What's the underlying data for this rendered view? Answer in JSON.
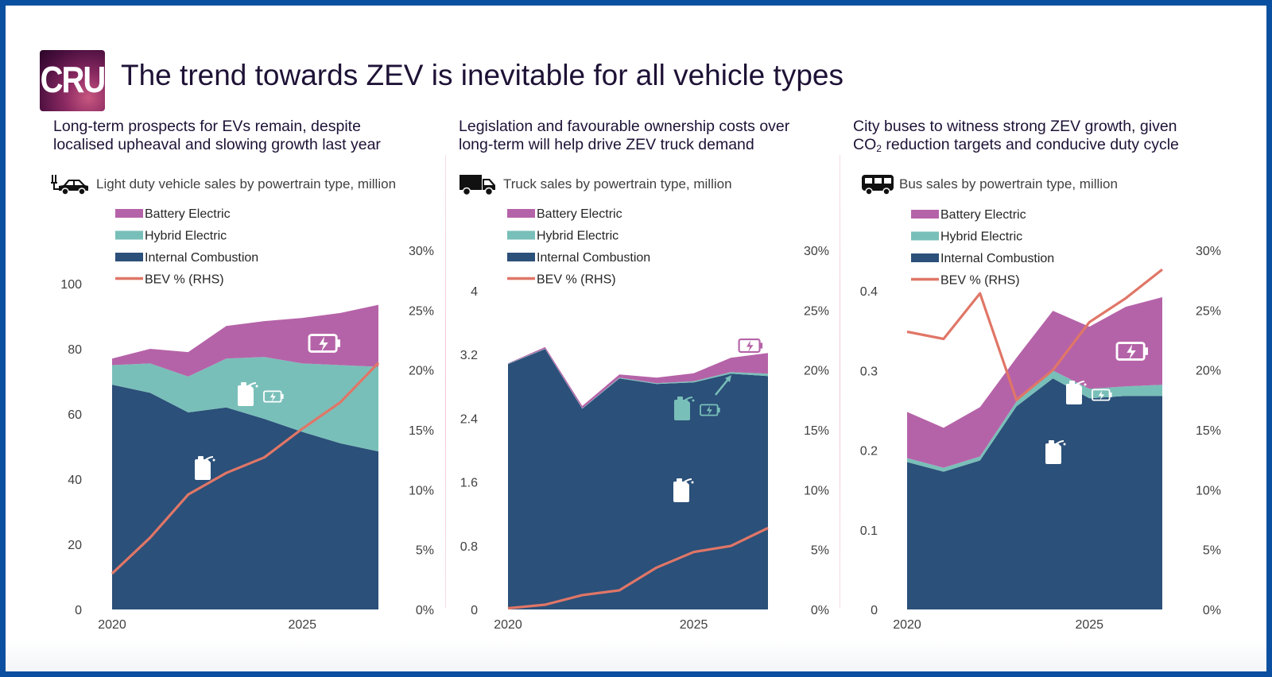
{
  "header": {
    "logo_text": "CRU",
    "title": "The trend towards ZEV is inevitable for all vehicle types"
  },
  "colors": {
    "battery_electric": "#b563a8",
    "hybrid_electric": "#79bfb9",
    "internal_combustion": "#2b5079",
    "bev_share_line": "#e07667",
    "border": "#0b4fa0"
  },
  "panels": [
    {
      "subtitle_line1": "Long-term prospects for EVs remain, despite",
      "subtitle_line2": "localised upheaval and slowing growth last year",
      "chart_label": "Light duty vehicle sales by powertrain type, million",
      "icon": "car-icon"
    },
    {
      "subtitle_line1": "Legislation and favourable ownership costs over",
      "subtitle_line2": "long-term will help drive ZEV truck demand",
      "chart_label": "Truck sales by powertrain type, million",
      "icon": "truck-icon"
    },
    {
      "subtitle_line1": "City buses to witness strong ZEV growth, given",
      "subtitle_line2_pre": "CO",
      "subtitle_line2_sub": "2",
      "subtitle_line2_post": " reduction targets and conducive duty cycle",
      "chart_label": "Bus sales by powertrain type, million",
      "icon": "bus-icon"
    }
  ],
  "legend": [
    "Battery Electric",
    "Hybrid Electric",
    "Internal Combustion",
    "BEV % (RHS)"
  ],
  "chart_data": [
    {
      "type": "area",
      "title": "Light duty vehicle sales by powertrain type, million",
      "x": [
        2020,
        2021,
        2022,
        2023,
        2024,
        2025,
        2026,
        2027
      ],
      "x_tick_labels": [
        "2020",
        "2025"
      ],
      "stacked": true,
      "series": [
        {
          "name": "Internal Combustion",
          "values": [
            69,
            66.5,
            60.5,
            62,
            58.5,
            54.5,
            51,
            48.5
          ]
        },
        {
          "name": "Hybrid Electric",
          "values": [
            6,
            9,
            11,
            15,
            19,
            21,
            24,
            26
          ]
        },
        {
          "name": "Battery Electric",
          "values": [
            2,
            4.5,
            7.5,
            10,
            11,
            14,
            16,
            19
          ]
        },
        {
          "name": "BEV % (RHS)",
          "axis": "right",
          "values": [
            3,
            6,
            9.6,
            11.4,
            12.7,
            15.1,
            17.3,
            20.6
          ]
        }
      ],
      "ylim": [
        0,
        100
      ],
      "y_ticks": [
        0,
        20,
        40,
        60,
        80,
        100
      ],
      "y2lim": [
        0,
        30
      ],
      "y2_ticks": [
        "0%",
        "5%",
        "10%",
        "15%",
        "20%",
        "25%",
        "30%"
      ]
    },
    {
      "type": "area",
      "title": "Truck sales by powertrain type, million",
      "x": [
        2020,
        2021,
        2022,
        2023,
        2024,
        2025,
        2026,
        2027
      ],
      "x_tick_labels": [
        "2020",
        "2025"
      ],
      "stacked": true,
      "series": [
        {
          "name": "Internal Combustion",
          "values": [
            3.08,
            3.27,
            2.52,
            2.9,
            2.83,
            2.85,
            2.96,
            2.93
          ]
        },
        {
          "name": "Hybrid Electric",
          "values": [
            0.005,
            0.005,
            0.005,
            0.01,
            0.01,
            0.015,
            0.02,
            0.03
          ]
        },
        {
          "name": "Battery Electric",
          "values": [
            0.005,
            0.02,
            0.03,
            0.04,
            0.07,
            0.1,
            0.18,
            0.26
          ]
        },
        {
          "name": "BEV % (RHS)",
          "axis": "right",
          "values": [
            0.1,
            0.4,
            1.2,
            1.6,
            3.5,
            4.8,
            5.3,
            6.8
          ]
        }
      ],
      "ylim": [
        0,
        4
      ],
      "y_ticks": [
        "0",
        "0.8",
        "1.6",
        "2.4",
        "3.2",
        "4"
      ],
      "y2lim": [
        0,
        30
      ],
      "y2_ticks": [
        "0%",
        "5%",
        "10%",
        "15%",
        "20%",
        "25%",
        "30%"
      ]
    },
    {
      "type": "area",
      "title": "Bus sales by powertrain type, million",
      "x": [
        2020,
        2021,
        2022,
        2023,
        2024,
        2025,
        2026,
        2027
      ],
      "x_tick_labels": [
        "2020",
        "2025"
      ],
      "stacked": true,
      "series": [
        {
          "name": "Internal Combustion",
          "values": [
            0.185,
            0.173,
            0.187,
            0.255,
            0.29,
            0.265,
            0.268,
            0.268
          ]
        },
        {
          "name": "Hybrid Electric",
          "values": [
            0.005,
            0.005,
            0.005,
            0.006,
            0.01,
            0.012,
            0.012,
            0.014
          ]
        },
        {
          "name": "Battery Electric",
          "values": [
            0.058,
            0.05,
            0.062,
            0.055,
            0.075,
            0.078,
            0.1,
            0.11
          ]
        },
        {
          "name": "BEV % (RHS)",
          "axis": "right",
          "values": [
            23.2,
            22.6,
            26.4,
            17.5,
            20,
            24,
            26,
            28.4
          ]
        }
      ],
      "ylim": [
        0,
        0.4
      ],
      "y_ticks": [
        "0",
        "0.1",
        "0.2",
        "0.3",
        "0.4"
      ],
      "y2lim": [
        0,
        30
      ],
      "y2_ticks": [
        "0%",
        "5%",
        "10%",
        "15%",
        "20%",
        "25%",
        "30%"
      ]
    }
  ]
}
